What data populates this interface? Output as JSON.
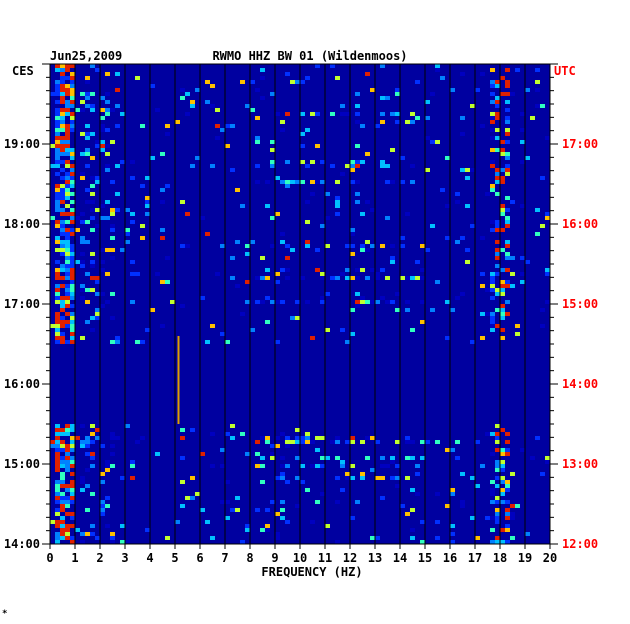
{
  "chart_data": {
    "type": "heatmap",
    "title": "RWMO HHZ BW 01 (Wildenmoos)",
    "date": "Jun25,2009",
    "xlabel": "FREQUENCY (HZ)",
    "left_axis_label": "CES",
    "right_axis_label": "UTC",
    "x_ticks": [
      "0",
      "1",
      "2",
      "3",
      "4",
      "5",
      "6",
      "7",
      "8",
      "9",
      "10",
      "11",
      "12",
      "13",
      "14",
      "15",
      "16",
      "17",
      "18",
      "19",
      "20"
    ],
    "xlim": [
      0,
      20
    ],
    "left_ticks": [
      "19:00",
      "18:00",
      "17:00",
      "16:00",
      "15:00",
      "14:00"
    ],
    "right_ticks": [
      "17:00",
      "16:00",
      "15:00",
      "14:00",
      "13:00",
      "12:00"
    ],
    "time_range_ces": [
      "14:00",
      "20:00"
    ],
    "data_gap_ces": [
      "15:30",
      "16:30"
    ],
    "energy_bands_hz": [
      [
        0.2,
        1.0
      ],
      [
        17.6,
        18.4
      ]
    ],
    "colors": {
      "background": "#0000a0",
      "label": "#000000",
      "utc_label": "#ff0000",
      "grid": "#000000"
    },
    "grid": true
  },
  "footer_mark": "*"
}
